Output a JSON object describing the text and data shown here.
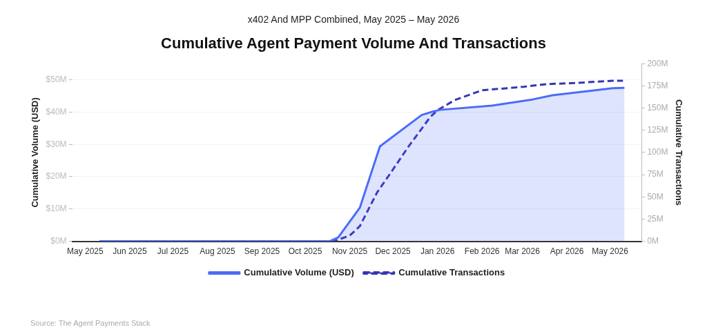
{
  "chart_data": {
    "type": "line",
    "subtitle": "x402 And MPP Combined, May 2025 – May 2026",
    "title": "Cumulative Agent Payment Volume And Transactions",
    "ylabel": "Cumulative Volume (USD)",
    "y2label": "Cumulative Transactions",
    "xlim": [
      "2025-04-22",
      "2026-05-23"
    ],
    "xticks": [
      {
        "value": "2025-05-01",
        "label": "May 2025"
      },
      {
        "value": "2025-06-01",
        "label": "Jun 2025"
      },
      {
        "value": "2025-07-01",
        "label": "Jul 2025"
      },
      {
        "value": "2025-08-01",
        "label": "Aug 2025"
      },
      {
        "value": "2025-09-01",
        "label": "Sep 2025"
      },
      {
        "value": "2025-10-01",
        "label": "Oct 2025"
      },
      {
        "value": "2025-11-01",
        "label": "Nov 2025"
      },
      {
        "value": "2025-12-01",
        "label": "Dec 2025"
      },
      {
        "value": "2026-01-01",
        "label": "Jan 2026"
      },
      {
        "value": "2026-02-01",
        "label": "Feb 2026"
      },
      {
        "value": "2026-03-01",
        "label": "Mar 2026"
      },
      {
        "value": "2026-04-01",
        "label": "Apr 2026"
      },
      {
        "value": "2026-05-01",
        "label": "May 2026"
      }
    ],
    "ylim": [
      0,
      55
    ],
    "yticks": [
      {
        "value": 0,
        "label": "$0M"
      },
      {
        "value": 10,
        "label": "$10M"
      },
      {
        "value": 20,
        "label": "$20M"
      },
      {
        "value": 30,
        "label": "$30M"
      },
      {
        "value": 40,
        "label": "$40M"
      },
      {
        "value": 50,
        "label": "$50M"
      }
    ],
    "y2lim": [
      0,
      200
    ],
    "y2ticks": [
      {
        "value": 0,
        "label": "0M"
      },
      {
        "value": 25,
        "label": "25M"
      },
      {
        "value": 50,
        "label": "50M"
      },
      {
        "value": 75,
        "label": "75M"
      },
      {
        "value": 100,
        "label": "100M"
      },
      {
        "value": 125,
        "label": "125M"
      },
      {
        "value": 150,
        "label": "150M"
      },
      {
        "value": 175,
        "label": "175M"
      },
      {
        "value": 200,
        "label": "200M"
      }
    ],
    "series": [
      {
        "name": "Cumulative Volume (USD)",
        "type": "area",
        "color": "#4a6cf7",
        "line_style": "solid",
        "x": [
          "2025-05-11",
          "2025-10-18",
          "2025-10-24",
          "2025-11-08",
          "2025-11-22",
          "2025-12-21",
          "2025-12-29",
          "2026-01-03",
          "2026-02-08",
          "2026-03-08",
          "2026-03-22",
          "2026-05-03",
          "2026-05-11"
        ],
        "values": [
          0,
          0,
          1.2,
          10.4,
          29.4,
          39.1,
          40.2,
          40.7,
          42.0,
          43.9,
          45.2,
          47.4,
          47.5
        ]
      },
      {
        "name": "Cumulative Transactions",
        "type": "line",
        "axis": "y2",
        "color": "#3535b5",
        "line_style": "dashed",
        "x": [
          "2025-05-11",
          "2025-10-21",
          "2025-11-01",
          "2025-11-08",
          "2025-11-20",
          "2025-11-29",
          "2025-12-12",
          "2025-12-27",
          "2026-01-01",
          "2026-01-13",
          "2026-02-01",
          "2026-03-02",
          "2026-03-18",
          "2026-04-04",
          "2026-05-03",
          "2026-05-10"
        ],
        "values": [
          0,
          0,
          6.5,
          17,
          55,
          76,
          107,
          140,
          147.5,
          159,
          170,
          174,
          177,
          178,
          180.7,
          180.7
        ]
      }
    ],
    "grid": "y",
    "legend": "bottom",
    "marker": "none",
    "annotations": [
      "Source: The Agent Payments Stack"
    ]
  }
}
